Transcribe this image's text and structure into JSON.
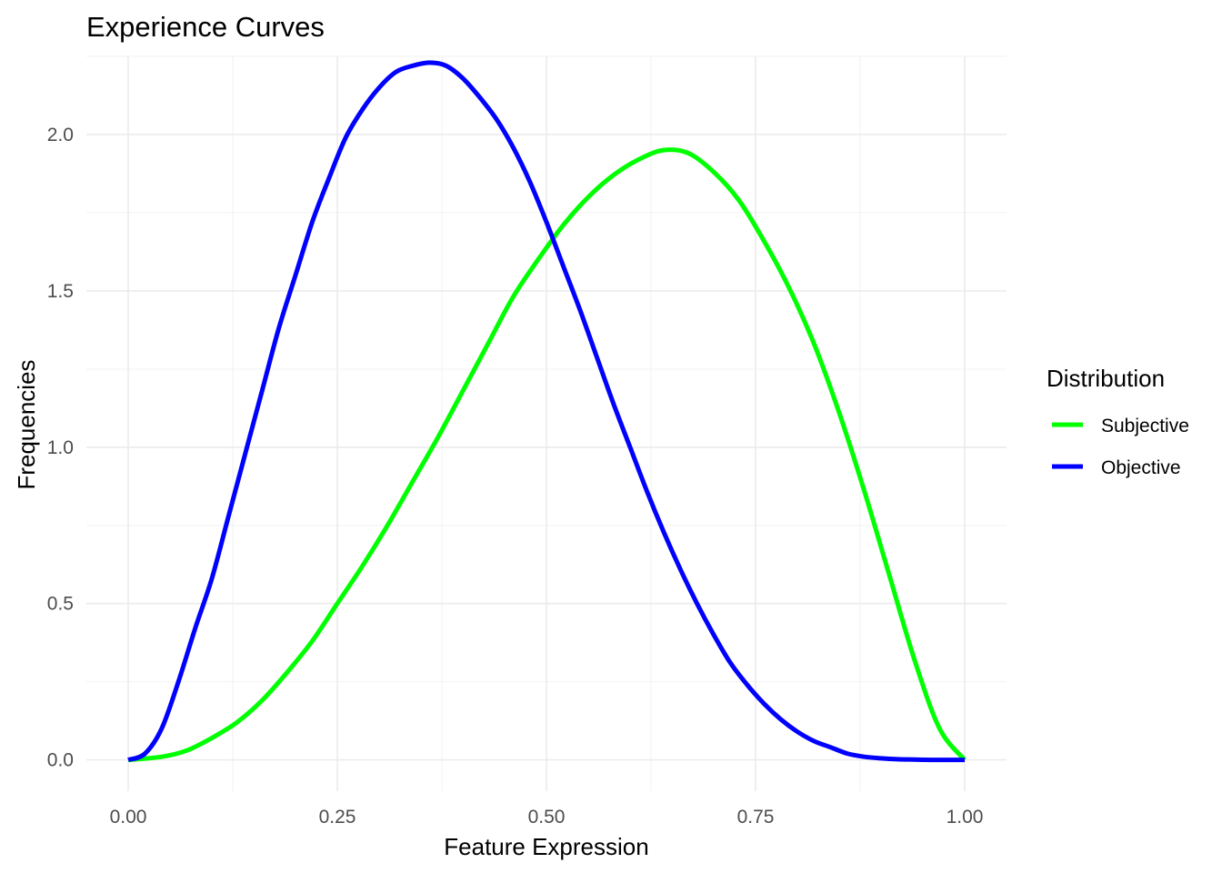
{
  "chart_data": {
    "type": "line",
    "title": "Experience Curves",
    "xlabel": "Feature Expression",
    "ylabel": "Frequencies",
    "xlim": [
      -0.05,
      1.05
    ],
    "ylim": [
      -0.1,
      2.25
    ],
    "x_ticks": [
      0.0,
      0.25,
      0.5,
      0.75,
      1.0
    ],
    "x_tick_labels": [
      "0.00",
      "0.25",
      "0.50",
      "0.75",
      "1.00"
    ],
    "y_ticks": [
      0.0,
      0.5,
      1.0,
      1.5,
      2.0
    ],
    "y_tick_labels": [
      "0.0",
      "0.5",
      "1.0",
      "1.5",
      "2.0"
    ],
    "grid": true,
    "legend": {
      "title": "Distribution",
      "position": "right"
    },
    "series": [
      {
        "name": "Subjective",
        "color": "#00ff00",
        "x": [
          0.0,
          0.04,
          0.07,
          0.1,
          0.13,
          0.16,
          0.19,
          0.22,
          0.25,
          0.28,
          0.31,
          0.34,
          0.37,
          0.4,
          0.43,
          0.46,
          0.49,
          0.52,
          0.55,
          0.58,
          0.61,
          0.64,
          0.67,
          0.7,
          0.73,
          0.76,
          0.79,
          0.82,
          0.85,
          0.88,
          0.91,
          0.94,
          0.97,
          1.0
        ],
        "values": [
          0.0,
          0.01,
          0.03,
          0.07,
          0.12,
          0.19,
          0.28,
          0.38,
          0.5,
          0.62,
          0.75,
          0.89,
          1.03,
          1.18,
          1.33,
          1.48,
          1.6,
          1.71,
          1.8,
          1.87,
          1.92,
          1.95,
          1.94,
          1.88,
          1.79,
          1.66,
          1.51,
          1.33,
          1.11,
          0.86,
          0.59,
          0.32,
          0.1,
          0.0
        ]
      },
      {
        "name": "Objective",
        "color": "#0000ff",
        "x": [
          0.0,
          0.02,
          0.04,
          0.06,
          0.08,
          0.1,
          0.12,
          0.14,
          0.16,
          0.18,
          0.2,
          0.22,
          0.24,
          0.26,
          0.28,
          0.3,
          0.32,
          0.34,
          0.36,
          0.38,
          0.4,
          0.42,
          0.44,
          0.46,
          0.48,
          0.5,
          0.52,
          0.54,
          0.56,
          0.58,
          0.6,
          0.62,
          0.64,
          0.66,
          0.68,
          0.7,
          0.72,
          0.74,
          0.76,
          0.78,
          0.8,
          0.82,
          0.84,
          0.86,
          0.88,
          0.9,
          0.92,
          0.94,
          0.96,
          0.98,
          1.0
        ],
        "values": [
          0.0,
          0.02,
          0.1,
          0.25,
          0.42,
          0.58,
          0.78,
          0.98,
          1.18,
          1.38,
          1.55,
          1.72,
          1.86,
          1.99,
          2.08,
          2.15,
          2.2,
          2.22,
          2.23,
          2.22,
          2.18,
          2.12,
          2.05,
          1.96,
          1.85,
          1.72,
          1.58,
          1.44,
          1.29,
          1.14,
          1.0,
          0.86,
          0.73,
          0.61,
          0.5,
          0.4,
          0.31,
          0.24,
          0.18,
          0.13,
          0.09,
          0.06,
          0.04,
          0.02,
          0.01,
          0.005,
          0.002,
          0.001,
          0.0,
          0.0,
          0.0
        ]
      }
    ]
  }
}
